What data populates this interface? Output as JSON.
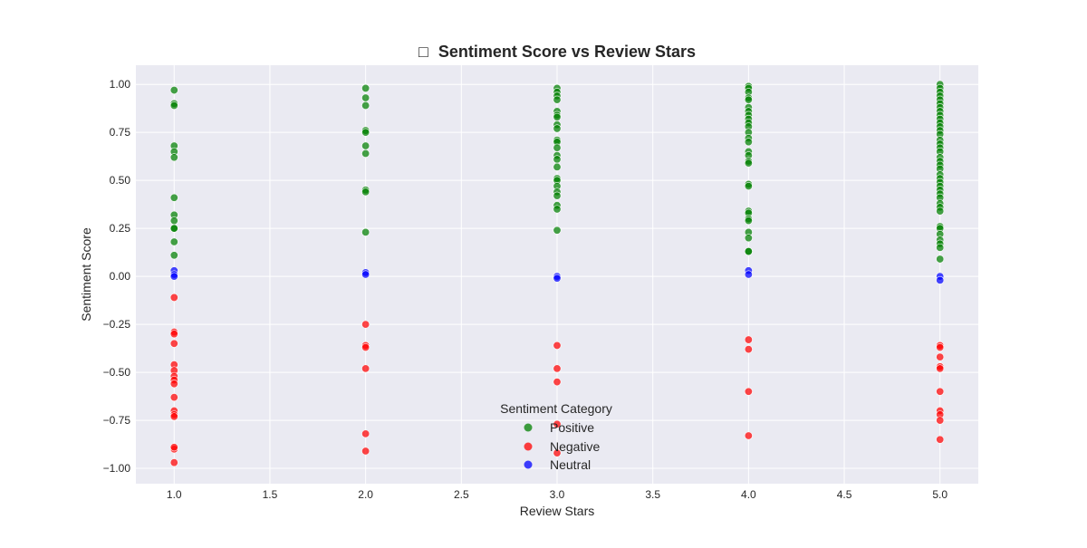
{
  "chart_data": {
    "type": "scatter",
    "title_icon": "□",
    "title": "Sentiment Score vs Review Stars",
    "xlabel": "Review Stars",
    "ylabel": "Sentiment Score",
    "xlim": [
      0.8,
      5.2
    ],
    "ylim": [
      -1.08,
      1.1
    ],
    "x_ticks": [
      1.0,
      1.5,
      2.0,
      2.5,
      3.0,
      3.5,
      4.0,
      4.5,
      5.0
    ],
    "x_tick_labels": [
      "1.0",
      "1.5",
      "2.0",
      "2.5",
      "3.0",
      "3.5",
      "4.0",
      "4.5",
      "5.0"
    ],
    "y_ticks": [
      1.0,
      0.75,
      0.5,
      0.25,
      0.0,
      -0.25,
      -0.5,
      -0.75,
      -1.0
    ],
    "y_tick_labels": [
      "1.00",
      "0.75",
      "0.50",
      "0.25",
      "0.00",
      "−0.25",
      "−0.50",
      "−0.75",
      "−1.00"
    ],
    "grid": true,
    "background": "#eaeaf2",
    "legend": {
      "title": "Sentiment Category",
      "placement": "lower-center"
    },
    "series": [
      {
        "name": "Positive",
        "color": "#008000",
        "points": [
          [
            1,
            0.97
          ],
          [
            1,
            0.9
          ],
          [
            1,
            0.89
          ],
          [
            1,
            0.68
          ],
          [
            1,
            0.65
          ],
          [
            1,
            0.62
          ],
          [
            1,
            0.41
          ],
          [
            1,
            0.32
          ],
          [
            1,
            0.29
          ],
          [
            1,
            0.25
          ],
          [
            1,
            0.25
          ],
          [
            1,
            0.18
          ],
          [
            1,
            0.11
          ],
          [
            2,
            0.98
          ],
          [
            2,
            0.93
          ],
          [
            2,
            0.89
          ],
          [
            2,
            0.76
          ],
          [
            2,
            0.75
          ],
          [
            2,
            0.68
          ],
          [
            2,
            0.64
          ],
          [
            2,
            0.45
          ],
          [
            2,
            0.44
          ],
          [
            2,
            0.23
          ],
          [
            3,
            0.98
          ],
          [
            3,
            0.96
          ],
          [
            3,
            0.94
          ],
          [
            3,
            0.92
          ],
          [
            3,
            0.86
          ],
          [
            3,
            0.84
          ],
          [
            3,
            0.83
          ],
          [
            3,
            0.79
          ],
          [
            3,
            0.77
          ],
          [
            3,
            0.71
          ],
          [
            3,
            0.7
          ],
          [
            3,
            0.67
          ],
          [
            3,
            0.63
          ],
          [
            3,
            0.61
          ],
          [
            3,
            0.57
          ],
          [
            3,
            0.51
          ],
          [
            3,
            0.5
          ],
          [
            3,
            0.47
          ],
          [
            3,
            0.44
          ],
          [
            3,
            0.42
          ],
          [
            3,
            0.37
          ],
          [
            3,
            0.35
          ],
          [
            3,
            0.24
          ],
          [
            4,
            0.99
          ],
          [
            4,
            0.98
          ],
          [
            4,
            0.96
          ],
          [
            4,
            0.93
          ],
          [
            4,
            0.92
          ],
          [
            4,
            0.88
          ],
          [
            4,
            0.86
          ],
          [
            4,
            0.84
          ],
          [
            4,
            0.82
          ],
          [
            4,
            0.8
          ],
          [
            4,
            0.78
          ],
          [
            4,
            0.75
          ],
          [
            4,
            0.72
          ],
          [
            4,
            0.7
          ],
          [
            4,
            0.65
          ],
          [
            4,
            0.63
          ],
          [
            4,
            0.6
          ],
          [
            4,
            0.59
          ],
          [
            4,
            0.48
          ],
          [
            4,
            0.47
          ],
          [
            4,
            0.34
          ],
          [
            4,
            0.33
          ],
          [
            4,
            0.3
          ],
          [
            4,
            0.29
          ],
          [
            4,
            0.23
          ],
          [
            4,
            0.2
          ],
          [
            4,
            0.13
          ],
          [
            4,
            0.13
          ],
          [
            5,
            1.0
          ],
          [
            5,
            0.98
          ],
          [
            5,
            0.96
          ],
          [
            5,
            0.94
          ],
          [
            5,
            0.92
          ],
          [
            5,
            0.9
          ],
          [
            5,
            0.88
          ],
          [
            5,
            0.86
          ],
          [
            5,
            0.84
          ],
          [
            5,
            0.82
          ],
          [
            5,
            0.8
          ],
          [
            5,
            0.78
          ],
          [
            5,
            0.76
          ],
          [
            5,
            0.74
          ],
          [
            5,
            0.71
          ],
          [
            5,
            0.69
          ],
          [
            5,
            0.67
          ],
          [
            5,
            0.65
          ],
          [
            5,
            0.62
          ],
          [
            5,
            0.6
          ],
          [
            5,
            0.58
          ],
          [
            5,
            0.56
          ],
          [
            5,
            0.53
          ],
          [
            5,
            0.51
          ],
          [
            5,
            0.49
          ],
          [
            5,
            0.47
          ],
          [
            5,
            0.45
          ],
          [
            5,
            0.43
          ],
          [
            5,
            0.41
          ],
          [
            5,
            0.38
          ],
          [
            5,
            0.36
          ],
          [
            5,
            0.34
          ],
          [
            5,
            0.26
          ],
          [
            5,
            0.25
          ],
          [
            5,
            0.22
          ],
          [
            5,
            0.19
          ],
          [
            5,
            0.17
          ],
          [
            5,
            0.15
          ],
          [
            5,
            0.09
          ]
        ]
      },
      {
        "name": "Negative",
        "color": "#ff0000",
        "points": [
          [
            1,
            -0.11
          ],
          [
            1,
            -0.29
          ],
          [
            1,
            -0.3
          ],
          [
            1,
            -0.35
          ],
          [
            1,
            -0.46
          ],
          [
            1,
            -0.49
          ],
          [
            1,
            -0.52
          ],
          [
            1,
            -0.54
          ],
          [
            1,
            -0.56
          ],
          [
            1,
            -0.63
          ],
          [
            1,
            -0.7
          ],
          [
            1,
            -0.72
          ],
          [
            1,
            -0.73
          ],
          [
            1,
            -0.9
          ],
          [
            1,
            -0.89
          ],
          [
            1,
            -0.97
          ],
          [
            2,
            -0.25
          ],
          [
            2,
            -0.36
          ],
          [
            2,
            -0.37
          ],
          [
            2,
            -0.48
          ],
          [
            2,
            -0.82
          ],
          [
            2,
            -0.91
          ],
          [
            3,
            -0.36
          ],
          [
            3,
            -0.48
          ],
          [
            3,
            -0.55
          ],
          [
            3,
            -0.77
          ],
          [
            3,
            -0.92
          ],
          [
            4,
            -0.33
          ],
          [
            4,
            -0.38
          ],
          [
            4,
            -0.6
          ],
          [
            4,
            -0.83
          ],
          [
            5,
            -0.36
          ],
          [
            5,
            -0.37
          ],
          [
            5,
            -0.42
          ],
          [
            5,
            -0.47
          ],
          [
            5,
            -0.48
          ],
          [
            5,
            -0.6
          ],
          [
            5,
            -0.7
          ],
          [
            5,
            -0.72
          ],
          [
            5,
            -0.75
          ],
          [
            5,
            -0.85
          ]
        ]
      },
      {
        "name": "Neutral",
        "color": "#0000ff",
        "points": [
          [
            1,
            0.03
          ],
          [
            1,
            0.01
          ],
          [
            1,
            0.0
          ],
          [
            2,
            0.02
          ],
          [
            2,
            0.01
          ],
          [
            3,
            0.0
          ],
          [
            3,
            -0.01
          ],
          [
            4,
            0.03
          ],
          [
            4,
            0.01
          ],
          [
            5,
            0.0
          ],
          [
            5,
            -0.02
          ]
        ]
      }
    ]
  }
}
